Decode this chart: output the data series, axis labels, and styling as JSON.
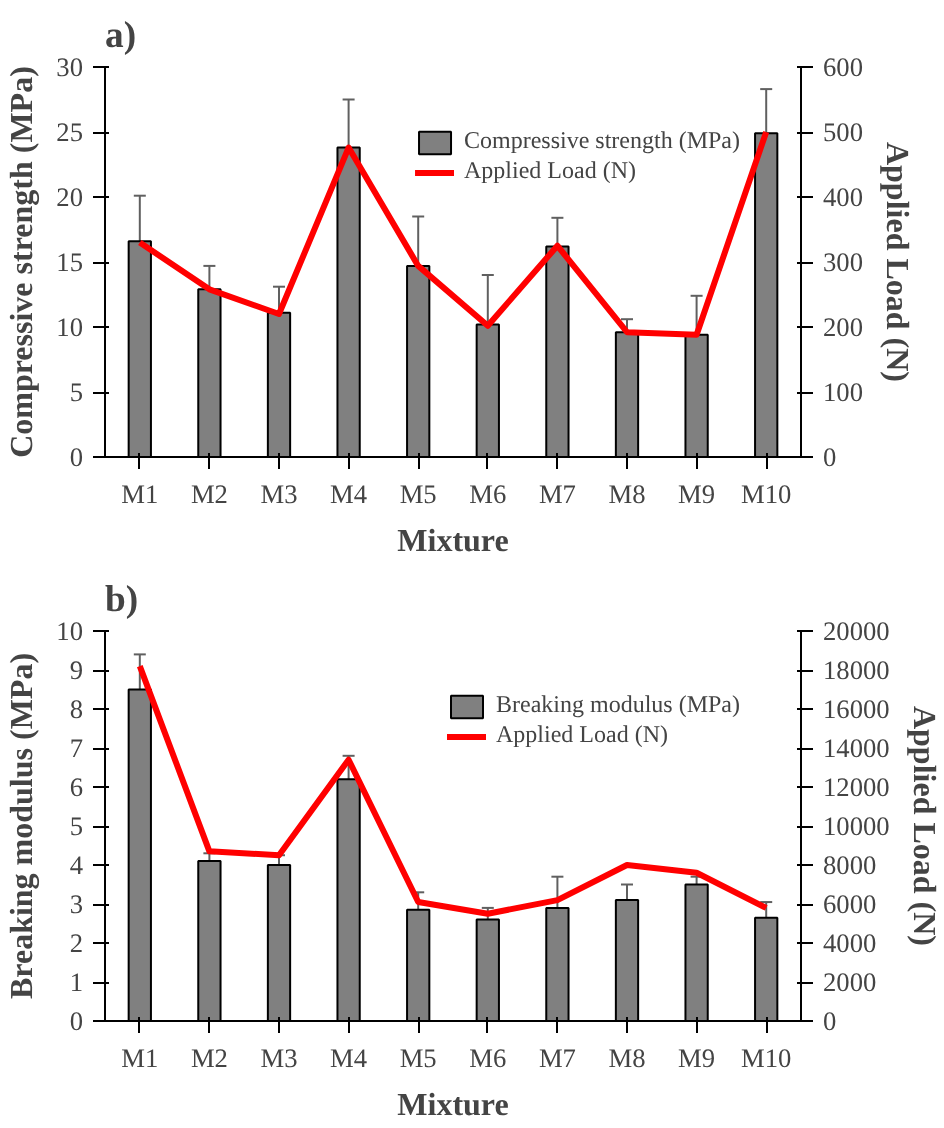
{
  "chart_data": [
    {
      "type": "bar",
      "title": "a)",
      "xlabel": "Mixture",
      "ylabel": "Compressive strength (MPa)",
      "y2label": "Applied Load (N)",
      "categories": [
        "M1",
        "M2",
        "M3",
        "M4",
        "M5",
        "M6",
        "M7",
        "M8",
        "M9",
        "M10"
      ],
      "ylim": [
        0,
        30
      ],
      "yticks": [
        0,
        5,
        10,
        15,
        20,
        25,
        30
      ],
      "y2lim": [
        0,
        600
      ],
      "y2ticks": [
        0,
        100,
        200,
        300,
        400,
        500,
        600
      ],
      "grid": false,
      "legend": "top right",
      "series": [
        {
          "name": "Compressive strength (MPa)",
          "color": "#808080",
          "values": [
            16.6,
            12.9,
            11.1,
            23.8,
            14.7,
            10.2,
            16.2,
            9.6,
            9.4,
            24.9
          ],
          "errors": [
            3.5,
            1.8,
            2.0,
            3.7,
            3.8,
            3.8,
            2.2,
            1.0,
            3.0,
            3.4
          ]
        },
        {
          "name": "Applied Load (N)",
          "type": "line",
          "axis": "y2",
          "color": "#ff0000",
          "values": [
            330,
            258,
            220,
            476,
            294,
            202,
            325,
            192,
            188,
            500
          ]
        }
      ]
    },
    {
      "type": "bar",
      "title": "b)",
      "xlabel": "Mixture",
      "ylabel": "Breaking modulus (MPa)",
      "y2label": "Applied Load (N)",
      "categories": [
        "M1",
        "M2",
        "M3",
        "M4",
        "M5",
        "M6",
        "M7",
        "M8",
        "M9",
        "M10"
      ],
      "ylim": [
        0,
        10
      ],
      "yticks": [
        0,
        1,
        2,
        3,
        4,
        5,
        6,
        7,
        8,
        9,
        10
      ],
      "y2lim": [
        0,
        20000
      ],
      "y2ticks": [
        0,
        2000,
        4000,
        6000,
        8000,
        10000,
        12000,
        14000,
        16000,
        18000,
        20000
      ],
      "grid": false,
      "legend": "top right",
      "series": [
        {
          "name": "Breaking modulus (MPa)",
          "color": "#808080",
          "values": [
            8.5,
            4.1,
            4.0,
            6.2,
            2.85,
            2.6,
            2.9,
            3.1,
            3.5,
            2.65
          ],
          "errors": [
            0.9,
            0.2,
            0.25,
            0.6,
            0.45,
            0.3,
            0.8,
            0.4,
            0.2,
            0.4
          ]
        },
        {
          "name": "Applied Load (N)",
          "type": "line",
          "axis": "y2",
          "color": "#ff0000",
          "values": [
            18200,
            8700,
            8500,
            13400,
            6100,
            5500,
            6200,
            8000,
            7600,
            5800
          ]
        }
      ]
    }
  ]
}
